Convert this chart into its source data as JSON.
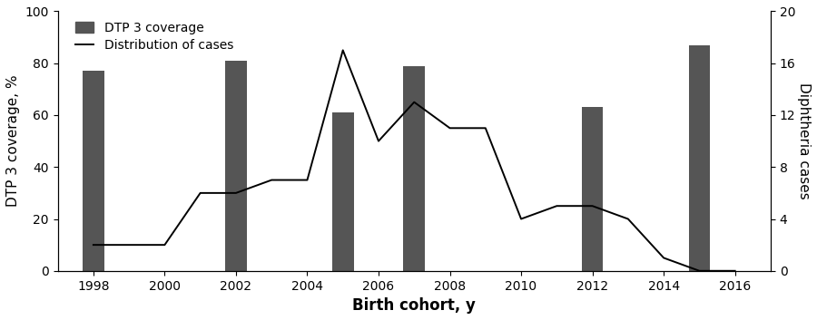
{
  "bar_years": [
    1998,
    2002,
    2005,
    2007,
    2012,
    2015
  ],
  "bar_values": [
    77,
    81,
    61,
    79,
    63,
    87
  ],
  "bar_color": "#555555",
  "bar_width": 0.6,
  "line_years": [
    1998,
    1999,
    2000,
    2001,
    2002,
    2003,
    2004,
    2005,
    2006,
    2007,
    2008,
    2009,
    2010,
    2011,
    2012,
    2013,
    2014,
    2015,
    2016
  ],
  "line_cases": [
    2,
    2,
    2,
    6,
    6,
    7,
    7,
    17,
    10,
    13,
    11,
    11,
    4,
    5,
    5,
    4,
    1,
    0,
    0
  ],
  "left_ylabel": "DTP 3 coverage, %",
  "right_ylabel": "Diphtheria cases",
  "xlabel": "Birth cohort, y",
  "left_ylim": [
    0,
    100
  ],
  "right_ylim": [
    0,
    20
  ],
  "left_yticks": [
    0,
    20,
    40,
    60,
    80,
    100
  ],
  "right_yticks": [
    0,
    4,
    8,
    12,
    16,
    20
  ],
  "xlim": [
    1997.0,
    2017.0
  ],
  "xticks": [
    1998,
    2000,
    2002,
    2004,
    2006,
    2008,
    2010,
    2012,
    2014,
    2016
  ],
  "legend_bar_label": "DTP 3 coverage",
  "legend_line_label": "Distribution of cases",
  "line_color": "#000000",
  "line_width": 1.4,
  "background_color": "#ffffff",
  "tick_fontsize": 10,
  "label_fontsize": 11,
  "xlabel_fontsize": 12
}
